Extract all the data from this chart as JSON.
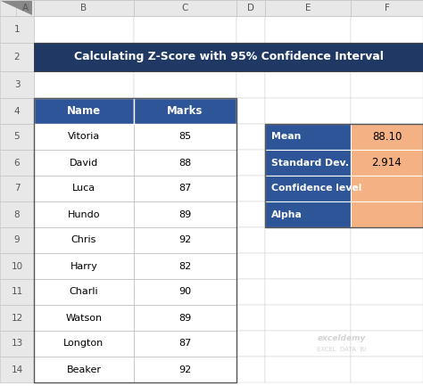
{
  "title": "Calculating Z-Score with 95% Confidence Interval",
  "title_bg": "#1F3864",
  "title_fg": "#FFFFFF",
  "header_bg": "#2E5597",
  "header_fg": "#FFFFFF",
  "cell_bg": "#FFFFFF",
  "cell_fg": "#000000",
  "outer_bg": "#FFFFFF",
  "col_letters": [
    "A",
    "B",
    "C",
    "D",
    "E",
    "F"
  ],
  "col_header_bg": "#E8E8E8",
  "col_header_fg": "#555555",
  "row_header_bg": "#E8E8E8",
  "row_header_fg": "#555555",
  "names": [
    "Vitoria",
    "David",
    "Luca",
    "Hundo",
    "Chris",
    "Harry",
    "Charli",
    "Watson",
    "Longton",
    "Beaker"
  ],
  "marks": [
    85,
    88,
    87,
    89,
    92,
    82,
    90,
    89,
    87,
    92
  ],
  "stats_labels": [
    "Mean",
    "Standard Dev.",
    "Confidence level",
    "Alpha"
  ],
  "stats_values": [
    "88.10",
    "2.914",
    "",
    ""
  ],
  "stats_label_bg": "#2E5597",
  "stats_label_fg": "#FFFFFF",
  "stats_value_bg": "#F4B183",
  "stats_value_fg": "#000000",
  "grid_color": "#BBBBBB",
  "watermark1": "exceldemy",
  "watermark2": "EXCEL  DATA  BI",
  "watermark_color": "#CCCCCC"
}
